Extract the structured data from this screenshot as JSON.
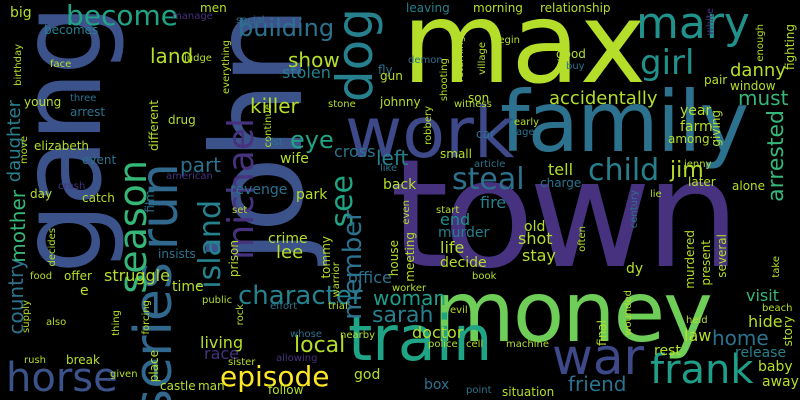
{
  "words": {
    "town": "town",
    "john": "john",
    "gang": "gang",
    "max": "max",
    "family": "family",
    "money": "money",
    "work": "work",
    "train": "train",
    "mary": "mary",
    "series": "series",
    "run": "run",
    "war": "war",
    "dog": "dog",
    "frank": "frank",
    "horse": "horse",
    "season": "season",
    "michael": "michael",
    "episode": "episode",
    "character": "character",
    "girl": "girl",
    "become": "become",
    "steal": "steal",
    "child": "child",
    "see": "see",
    "island": "island",
    "building": "building",
    "land": "land",
    "show": "show",
    "killer": "killer",
    "eye": "eye",
    "part": "part",
    "member": "member",
    "local": "local",
    "sarah": "sarah",
    "woman": "woman",
    "jim": "jim",
    "accidentally": "accidentally",
    "danny": "danny",
    "must": "must",
    "arrested": "arrested",
    "home": "home",
    "friend": "friend",
    "country": "country",
    "mother": "mother",
    "daughter": "daughter",
    "stolen": "stolen",
    "left": "left",
    "lee": "lee",
    "fire": "fire",
    "end": "end",
    "life": "life",
    "decide": "decide",
    "stay": "stay",
    "shot": "shot",
    "old": "old",
    "office": "office",
    "doctor": "doctor",
    "living": "living",
    "race": "race",
    "struggle": "struggle",
    "time": "time",
    "visit": "visit",
    "hide": "hide",
    "release": "release",
    "baby": "baby",
    "away": "away",
    "rest": "rest",
    "law": "law",
    "god": "god",
    "box": "box",
    "murder": "murder",
    "crime": "crime",
    "revenge": "revenge",
    "park": "park",
    "wife": "wife",
    "cross": "cross",
    "back": "back",
    "tell": "tell",
    "charge": "charge",
    "later": "later",
    "alone": "alone",
    "farm": "farm",
    "year": "year",
    "window": "window",
    "giving": "giving",
    "among": "among",
    "pair": "pair",
    "good": "good",
    "buy": "buy",
    "son": "son",
    "johnny": "johnny",
    "fly": "fly",
    "gun": "gun",
    "morning": "morning",
    "relationship": "relationship",
    "leaving": "leaving",
    "men": "men",
    "judge": "judge",
    "big": "big",
    "becomes": "becomes",
    "face": "face",
    "young": "young",
    "arrest": "arrest",
    "elizabeth": "elizabeth",
    "event": "event",
    "day": "day",
    "catch": "catch",
    "offer": "offer",
    "insists": "insists",
    "prison": "prison",
    "tommy": "tommy",
    "house": "house",
    "meeting": "meeting",
    "small": "small",
    "car": "car",
    "drug": "drug",
    "different": "different",
    "three": "three",
    "film": "film",
    "crash": "crash",
    "also": "also",
    "place": "place",
    "break": "break",
    "castle": "castle",
    "man": "man",
    "follow": "follow",
    "sister": "sister",
    "allowing": "allowing",
    "nearby": "nearby",
    "police": "police",
    "cell": "cell",
    "machine": "machine",
    "situation": "situation",
    "point": "point",
    "several": "several",
    "present": "present",
    "murdered": "murdered",
    "final": "final",
    "held": "held",
    "wounded": "wounded",
    "beach": "beach",
    "story": "story",
    "dy": "dy",
    "trial": "trial",
    "effort": "effort",
    "whose": "whose",
    "public": "public",
    "thing": "thing",
    "rush": "rush",
    "given": "given",
    "e": "e",
    "enough": "enough",
    "fighting": "fighting",
    "white": "white",
    "early": "early",
    "age": "age",
    "village": "village",
    "witness": "witness",
    "robbery": "robbery",
    "returning": "returning",
    "shooting": "shooting",
    "demon": "demon",
    "begin": "begin",
    "article": "article",
    "century": "century",
    "lie": "lie",
    "jenny": "jenny",
    "social": "social",
    "continue": "continue",
    "stone": "stone",
    "list": "list",
    "like": "like",
    "even": "even",
    "often": "often",
    "take": "take",
    "worker": "worker",
    "warrior": "warrior",
    "book": "book",
    "food": "food",
    "decides": "decides",
    "start": "start",
    "american": "american",
    "birthday": "birthday",
    "move": "move",
    "supply": "supply",
    "forcing": "forcing",
    "rock": "rock",
    "evil": "evil",
    "everything": "everything",
    "manage": "manage",
    "set": "set"
  }
}
